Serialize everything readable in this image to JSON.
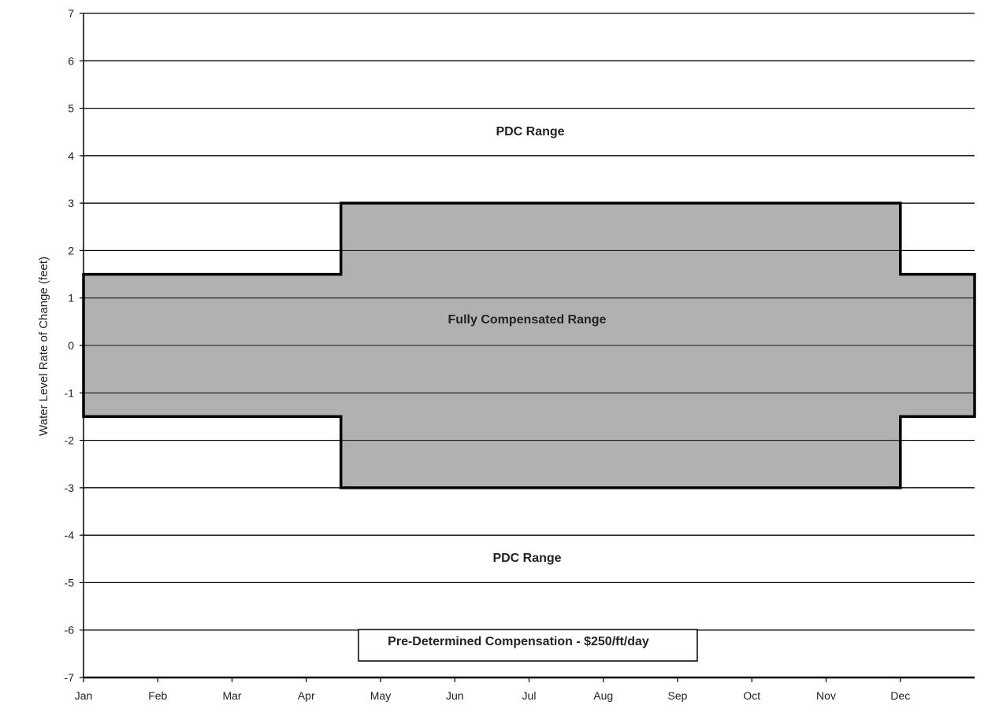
{
  "chart_data": {
    "type": "area",
    "title": "",
    "xlabel": "",
    "ylabel": "Water Level Rate of Change (feet)",
    "categories": [
      "Jan",
      "Feb",
      "Mar",
      "Apr",
      "May",
      "Jun",
      "Jul",
      "Aug",
      "Sep",
      "Oct",
      "Nov",
      "Dec"
    ],
    "ylim": [
      -7,
      7
    ],
    "yticks": [
      7,
      6,
      5,
      4,
      3,
      2,
      1,
      0,
      -1,
      -2,
      -3,
      -4,
      -5,
      -6,
      -7
    ],
    "grid": true,
    "x_start": "Jan 1",
    "x_end": "Dec 31",
    "fully_compensated_band": {
      "label": "Fully Compensated Range",
      "segments": [
        {
          "from": "Jan 1",
          "to": "Apr 15",
          "upper": 1.5,
          "lower": -1.5
        },
        {
          "from": "Apr 15",
          "to": "Dec 1",
          "upper": 3,
          "lower": -3
        },
        {
          "from": "Dec 1",
          "to": "Dec 31",
          "upper": 1.5,
          "lower": -1.5
        }
      ]
    },
    "annotations": {
      "upper_region": "PDC Range",
      "lower_region": "PDC Range",
      "compensation_box": "Pre-Determined Compensation - $250/ft/day"
    }
  },
  "colors": {
    "band_fill": "#a8a8a8",
    "grid": "#000000",
    "background": "#ffffff"
  }
}
